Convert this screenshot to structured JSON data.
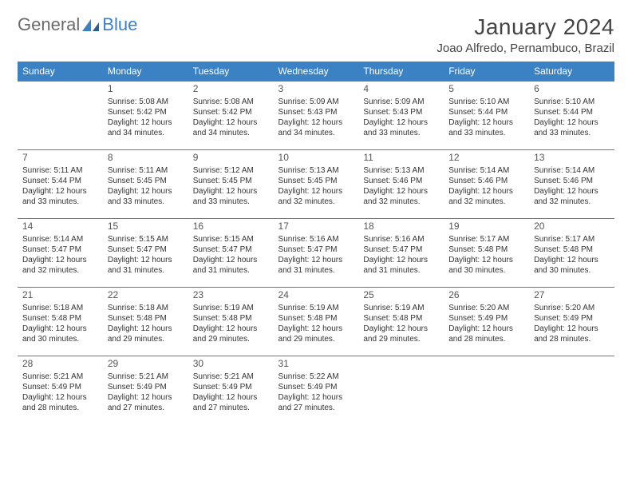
{
  "logo": {
    "text1": "General",
    "text2": "Blue"
  },
  "title": "January 2024",
  "location": "Joao Alfredo, Pernambuco, Brazil",
  "weekdays": [
    "Sunday",
    "Monday",
    "Tuesday",
    "Wednesday",
    "Thursday",
    "Friday",
    "Saturday"
  ],
  "colors": {
    "header_bg": "#3b82c4",
    "header_text": "#ffffff",
    "border": "#3b82c4",
    "text": "#333333",
    "logo_gray": "#6b6b6b",
    "logo_blue": "#3b82c4"
  },
  "weeks": [
    [
      null,
      {
        "d": "1",
        "sr": "Sunrise: 5:08 AM",
        "ss": "Sunset: 5:42 PM",
        "dl1": "Daylight: 12 hours",
        "dl2": "and 34 minutes."
      },
      {
        "d": "2",
        "sr": "Sunrise: 5:08 AM",
        "ss": "Sunset: 5:42 PM",
        "dl1": "Daylight: 12 hours",
        "dl2": "and 34 minutes."
      },
      {
        "d": "3",
        "sr": "Sunrise: 5:09 AM",
        "ss": "Sunset: 5:43 PM",
        "dl1": "Daylight: 12 hours",
        "dl2": "and 34 minutes."
      },
      {
        "d": "4",
        "sr": "Sunrise: 5:09 AM",
        "ss": "Sunset: 5:43 PM",
        "dl1": "Daylight: 12 hours",
        "dl2": "and 33 minutes."
      },
      {
        "d": "5",
        "sr": "Sunrise: 5:10 AM",
        "ss": "Sunset: 5:44 PM",
        "dl1": "Daylight: 12 hours",
        "dl2": "and 33 minutes."
      },
      {
        "d": "6",
        "sr": "Sunrise: 5:10 AM",
        "ss": "Sunset: 5:44 PM",
        "dl1": "Daylight: 12 hours",
        "dl2": "and 33 minutes."
      }
    ],
    [
      {
        "d": "7",
        "sr": "Sunrise: 5:11 AM",
        "ss": "Sunset: 5:44 PM",
        "dl1": "Daylight: 12 hours",
        "dl2": "and 33 minutes."
      },
      {
        "d": "8",
        "sr": "Sunrise: 5:11 AM",
        "ss": "Sunset: 5:45 PM",
        "dl1": "Daylight: 12 hours",
        "dl2": "and 33 minutes."
      },
      {
        "d": "9",
        "sr": "Sunrise: 5:12 AM",
        "ss": "Sunset: 5:45 PM",
        "dl1": "Daylight: 12 hours",
        "dl2": "and 33 minutes."
      },
      {
        "d": "10",
        "sr": "Sunrise: 5:13 AM",
        "ss": "Sunset: 5:45 PM",
        "dl1": "Daylight: 12 hours",
        "dl2": "and 32 minutes."
      },
      {
        "d": "11",
        "sr": "Sunrise: 5:13 AM",
        "ss": "Sunset: 5:46 PM",
        "dl1": "Daylight: 12 hours",
        "dl2": "and 32 minutes."
      },
      {
        "d": "12",
        "sr": "Sunrise: 5:14 AM",
        "ss": "Sunset: 5:46 PM",
        "dl1": "Daylight: 12 hours",
        "dl2": "and 32 minutes."
      },
      {
        "d": "13",
        "sr": "Sunrise: 5:14 AM",
        "ss": "Sunset: 5:46 PM",
        "dl1": "Daylight: 12 hours",
        "dl2": "and 32 minutes."
      }
    ],
    [
      {
        "d": "14",
        "sr": "Sunrise: 5:14 AM",
        "ss": "Sunset: 5:47 PM",
        "dl1": "Daylight: 12 hours",
        "dl2": "and 32 minutes."
      },
      {
        "d": "15",
        "sr": "Sunrise: 5:15 AM",
        "ss": "Sunset: 5:47 PM",
        "dl1": "Daylight: 12 hours",
        "dl2": "and 31 minutes."
      },
      {
        "d": "16",
        "sr": "Sunrise: 5:15 AM",
        "ss": "Sunset: 5:47 PM",
        "dl1": "Daylight: 12 hours",
        "dl2": "and 31 minutes."
      },
      {
        "d": "17",
        "sr": "Sunrise: 5:16 AM",
        "ss": "Sunset: 5:47 PM",
        "dl1": "Daylight: 12 hours",
        "dl2": "and 31 minutes."
      },
      {
        "d": "18",
        "sr": "Sunrise: 5:16 AM",
        "ss": "Sunset: 5:47 PM",
        "dl1": "Daylight: 12 hours",
        "dl2": "and 31 minutes."
      },
      {
        "d": "19",
        "sr": "Sunrise: 5:17 AM",
        "ss": "Sunset: 5:48 PM",
        "dl1": "Daylight: 12 hours",
        "dl2": "and 30 minutes."
      },
      {
        "d": "20",
        "sr": "Sunrise: 5:17 AM",
        "ss": "Sunset: 5:48 PM",
        "dl1": "Daylight: 12 hours",
        "dl2": "and 30 minutes."
      }
    ],
    [
      {
        "d": "21",
        "sr": "Sunrise: 5:18 AM",
        "ss": "Sunset: 5:48 PM",
        "dl1": "Daylight: 12 hours",
        "dl2": "and 30 minutes."
      },
      {
        "d": "22",
        "sr": "Sunrise: 5:18 AM",
        "ss": "Sunset: 5:48 PM",
        "dl1": "Daylight: 12 hours",
        "dl2": "and 29 minutes."
      },
      {
        "d": "23",
        "sr": "Sunrise: 5:19 AM",
        "ss": "Sunset: 5:48 PM",
        "dl1": "Daylight: 12 hours",
        "dl2": "and 29 minutes."
      },
      {
        "d": "24",
        "sr": "Sunrise: 5:19 AM",
        "ss": "Sunset: 5:48 PM",
        "dl1": "Daylight: 12 hours",
        "dl2": "and 29 minutes."
      },
      {
        "d": "25",
        "sr": "Sunrise: 5:19 AM",
        "ss": "Sunset: 5:48 PM",
        "dl1": "Daylight: 12 hours",
        "dl2": "and 29 minutes."
      },
      {
        "d": "26",
        "sr": "Sunrise: 5:20 AM",
        "ss": "Sunset: 5:49 PM",
        "dl1": "Daylight: 12 hours",
        "dl2": "and 28 minutes."
      },
      {
        "d": "27",
        "sr": "Sunrise: 5:20 AM",
        "ss": "Sunset: 5:49 PM",
        "dl1": "Daylight: 12 hours",
        "dl2": "and 28 minutes."
      }
    ],
    [
      {
        "d": "28",
        "sr": "Sunrise: 5:21 AM",
        "ss": "Sunset: 5:49 PM",
        "dl1": "Daylight: 12 hours",
        "dl2": "and 28 minutes."
      },
      {
        "d": "29",
        "sr": "Sunrise: 5:21 AM",
        "ss": "Sunset: 5:49 PM",
        "dl1": "Daylight: 12 hours",
        "dl2": "and 27 minutes."
      },
      {
        "d": "30",
        "sr": "Sunrise: 5:21 AM",
        "ss": "Sunset: 5:49 PM",
        "dl1": "Daylight: 12 hours",
        "dl2": "and 27 minutes."
      },
      {
        "d": "31",
        "sr": "Sunrise: 5:22 AM",
        "ss": "Sunset: 5:49 PM",
        "dl1": "Daylight: 12 hours",
        "dl2": "and 27 minutes."
      },
      null,
      null,
      null
    ]
  ]
}
